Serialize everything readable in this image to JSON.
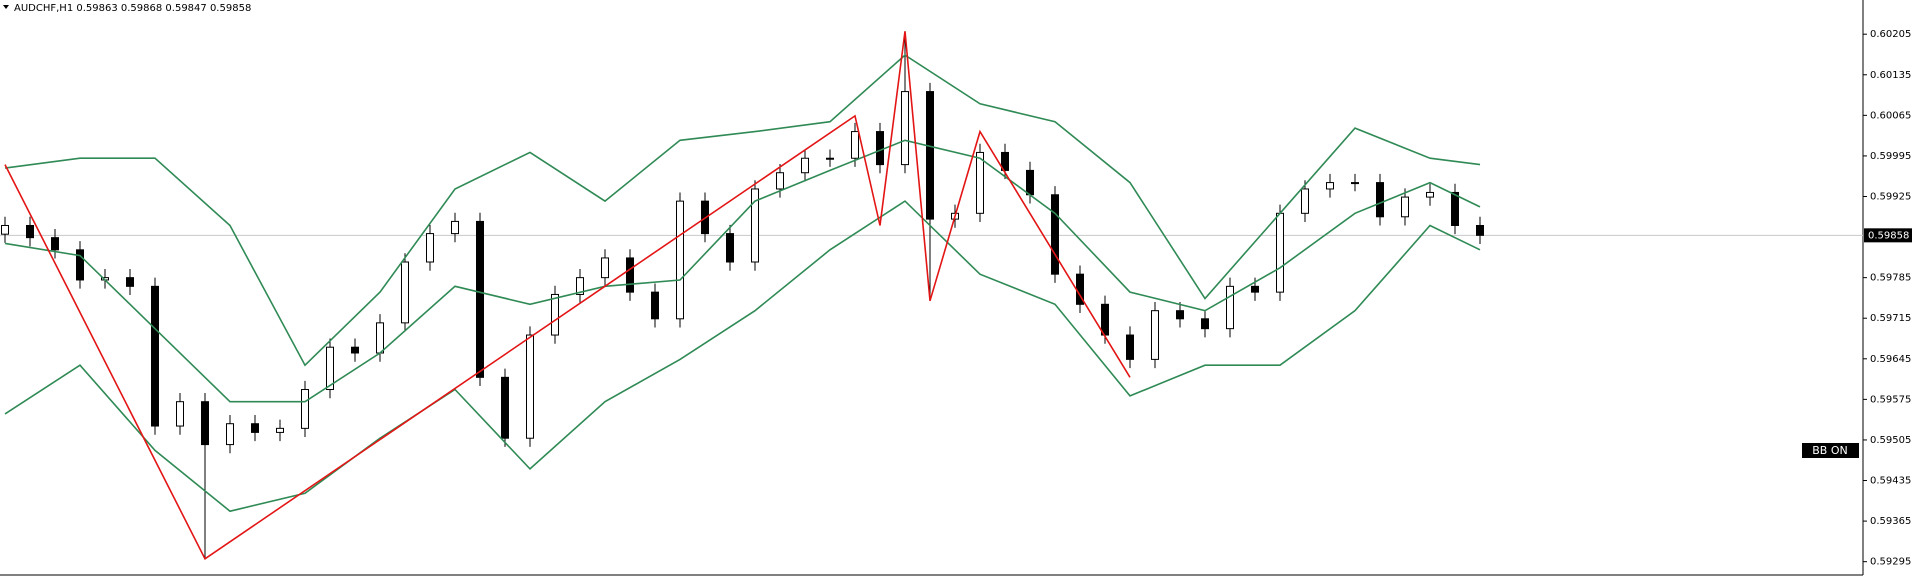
{
  "chart_data": {
    "type": "candlestick",
    "title": "AUDCHF,H1  0.59863 0.59868 0.59847 0.59858",
    "open": [
      0.5986,
      0.59875,
      0.59854,
      0.59833,
      0.59781,
      0.59785,
      0.5977,
      0.59529,
      0.59571,
      0.59497,
      0.59533,
      0.59518,
      0.59525,
      0.59592,
      0.59665,
      0.59655,
      0.59707,
      0.59812,
      0.59861,
      0.59882,
      0.59613,
      0.59508,
      0.59686,
      0.59756,
      0.59785,
      0.59819,
      0.5976,
      0.59714,
      0.59917,
      0.59861,
      0.59812,
      0.59938,
      0.59966,
      0.59991,
      0.59991,
      0.60037,
      0.5998,
      0.60106,
      0.59886,
      0.59896,
      0.60001,
      0.5997,
      0.59928,
      0.59791,
      0.59739,
      0.59686,
      0.59644,
      0.59728,
      0.59714,
      0.59697,
      0.5977,
      0.5976,
      0.59896,
      0.59938,
      0.59949,
      0.59949,
      0.5989,
      0.59924,
      0.59932,
      0.59875
    ],
    "high": [
      0.5989,
      0.5989,
      0.59869,
      0.59848,
      0.598,
      0.598,
      0.59785,
      0.59586,
      0.59586,
      0.59548,
      0.59548,
      0.5954,
      0.59607,
      0.5968,
      0.5968,
      0.59722,
      0.59827,
      0.59876,
      0.59897,
      0.59897,
      0.59628,
      0.59701,
      0.59771,
      0.598,
      0.59834,
      0.59834,
      0.59775,
      0.59932,
      0.59932,
      0.59876,
      0.59953,
      0.59981,
      0.60006,
      0.60006,
      0.60052,
      0.60052,
      0.6021,
      0.60121,
      0.59911,
      0.60016,
      0.60016,
      0.59985,
      0.59943,
      0.59806,
      0.59754,
      0.59701,
      0.59743,
      0.59743,
      0.59729,
      0.59785,
      0.59785,
      0.59911,
      0.59953,
      0.59964,
      0.59964,
      0.59964,
      0.59939,
      0.59947,
      0.59947,
      0.5989
    ],
    "low": [
      0.59845,
      0.59839,
      0.59818,
      0.59766,
      0.59766,
      0.59755,
      0.59514,
      0.59514,
      0.593,
      0.59482,
      0.59503,
      0.59503,
      0.5951,
      0.59577,
      0.5964,
      0.5964,
      0.59692,
      0.59797,
      0.59846,
      0.59598,
      0.59493,
      0.59493,
      0.59671,
      0.59741,
      0.5977,
      0.59745,
      0.59699,
      0.59699,
      0.59846,
      0.59797,
      0.59797,
      0.59923,
      0.59951,
      0.59976,
      0.59976,
      0.59965,
      0.59965,
      0.59745,
      0.59871,
      0.59881,
      0.59955,
      0.59913,
      0.59776,
      0.59724,
      0.59671,
      0.59629,
      0.59629,
      0.59699,
      0.59682,
      0.59682,
      0.59745,
      0.59745,
      0.59881,
      0.59923,
      0.59934,
      0.59875,
      0.59875,
      0.59909,
      0.5986,
      0.59843
    ],
    "close": [
      0.59875,
      0.59854,
      0.59833,
      0.59781,
      0.59785,
      0.5977,
      0.59529,
      0.59571,
      0.59497,
      0.59533,
      0.59518,
      0.59525,
      0.59592,
      0.59665,
      0.59655,
      0.59707,
      0.59812,
      0.59861,
      0.59882,
      0.59613,
      0.59508,
      0.59686,
      0.59756,
      0.59785,
      0.59819,
      0.5976,
      0.59714,
      0.59917,
      0.59861,
      0.59812,
      0.59938,
      0.59966,
      0.59991,
      0.59991,
      0.60037,
      0.5998,
      0.60106,
      0.59886,
      0.59896,
      0.60001,
      0.5997,
      0.59928,
      0.59791,
      0.59739,
      0.59686,
      0.59644,
      0.59728,
      0.59714,
      0.59697,
      0.5977,
      0.5976,
      0.59896,
      0.59938,
      0.59949,
      0.59949,
      0.5989,
      0.59924,
      0.59932,
      0.59875,
      0.59858
    ],
    "up_color": "#ffffff",
    "down_color": "#000000",
    "bands": {
      "color": "#2f8a55",
      "x": [
        0,
        3,
        6,
        9,
        12,
        15,
        18,
        21,
        24,
        27,
        30,
        33,
        36,
        39,
        42,
        45,
        48,
        51,
        54,
        57,
        59
      ],
      "upper": [
        0.59974,
        0.59991,
        0.59991,
        0.59875,
        0.59634,
        0.5976,
        0.59938,
        0.60001,
        0.59917,
        0.60022,
        0.60037,
        0.60054,
        0.60169,
        0.60085,
        0.60054,
        0.59949,
        0.59749,
        0.59896,
        0.60043,
        0.59991,
        0.5998
      ],
      "middle": [
        0.59844,
        0.59823,
        0.59697,
        0.59571,
        0.59571,
        0.59655,
        0.5977,
        0.59739,
        0.5977,
        0.59781,
        0.59917,
        0.5997,
        0.60022,
        0.59991,
        0.59896,
        0.5976,
        0.59728,
        0.59802,
        0.59896,
        0.59949,
        0.59907
      ],
      "lower": [
        0.5955,
        0.59634,
        0.59487,
        0.59382,
        0.59413,
        0.59508,
        0.59592,
        0.59455,
        0.59571,
        0.59644,
        0.59728,
        0.59833,
        0.59917,
        0.59791,
        0.59739,
        0.59581,
        0.59634,
        0.59634,
        0.59728,
        0.59875,
        0.59833
      ]
    },
    "zigzag": {
      "color": "#e31515",
      "x": [
        0,
        8,
        34,
        35,
        36,
        37,
        39,
        45
      ],
      "values": [
        0.5998,
        0.593,
        0.60064,
        0.59875,
        0.6021,
        0.59745,
        0.60037,
        0.59613
      ]
    },
    "current_price": 0.59858,
    "annotation": "BB ON",
    "ylim": [
      0.59272,
      0.60264
    ],
    "yticks": [
      0.60205,
      0.60135,
      0.60065,
      0.59995,
      0.59925,
      0.59785,
      0.59715,
      0.59645,
      0.59575,
      0.59505,
      0.59435,
      0.59365,
      0.59295
    ]
  }
}
